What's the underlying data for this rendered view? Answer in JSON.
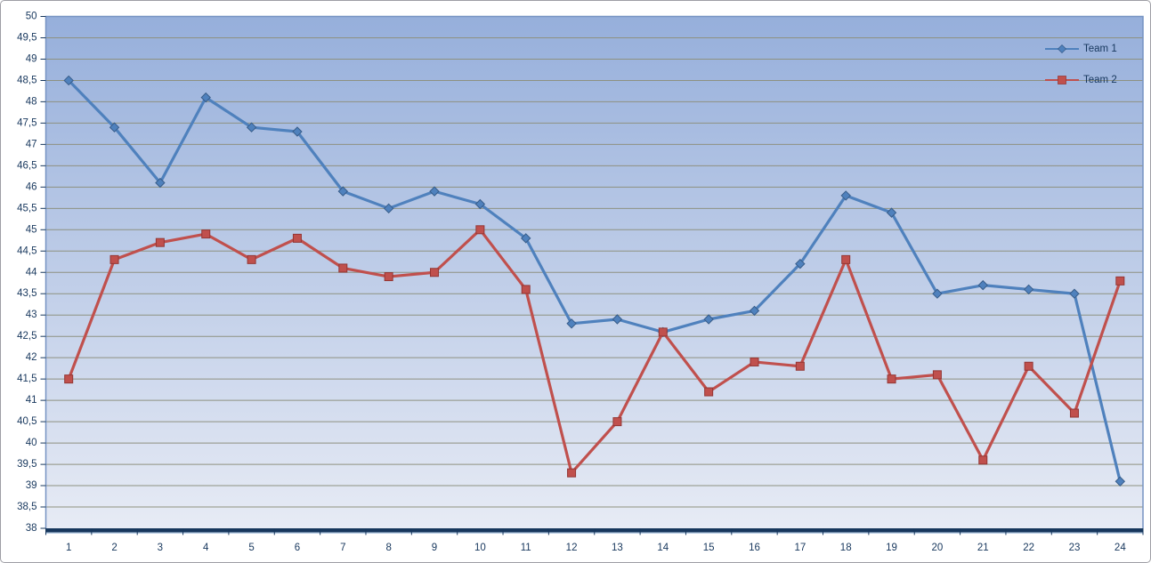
{
  "chart_data": {
    "type": "line",
    "categories": [
      "1",
      "2",
      "3",
      "4",
      "5",
      "6",
      "7",
      "8",
      "9",
      "10",
      "11",
      "12",
      "13",
      "14",
      "15",
      "16",
      "17",
      "18",
      "19",
      "20",
      "21",
      "22",
      "23",
      "24"
    ],
    "series": [
      {
        "name": "Team 1",
        "color": "#4f81bd",
        "marker": "diamond",
        "marker_border": "#385d8a",
        "values": [
          48.5,
          47.4,
          46.1,
          48.1,
          47.4,
          47.3,
          45.9,
          45.5,
          45.9,
          45.6,
          44.8,
          42.8,
          42.9,
          42.6,
          42.9,
          43.1,
          44.2,
          45.8,
          45.4,
          43.5,
          43.7,
          43.6,
          43.5,
          39.1
        ]
      },
      {
        "name": "Team 2",
        "color": "#c0504d",
        "marker": "square",
        "marker_border": "#943634",
        "values": [
          41.5,
          44.3,
          44.7,
          44.9,
          44.3,
          44.8,
          44.1,
          43.9,
          44.0,
          45.0,
          43.6,
          39.3,
          40.5,
          42.6,
          41.2,
          41.9,
          41.8,
          44.3,
          41.5,
          41.6,
          39.6,
          41.8,
          40.7,
          43.8
        ]
      }
    ],
    "xlabel": "",
    "ylabel": "",
    "ylim": [
      38,
      50
    ],
    "ytick_step": 0.5,
    "decimal_separator": ",",
    "y_tick_labels": [
      "50",
      "49,5",
      "49",
      "48,5",
      "48",
      "47,5",
      "47",
      "46,5",
      "46",
      "45,5",
      "45",
      "44,5",
      "44",
      "43,5",
      "43",
      "42,5",
      "42",
      "41,5",
      "41",
      "40,5",
      "40",
      "39,5",
      "39",
      "38,5",
      "38"
    ],
    "grid": true,
    "legend_position": "top-right",
    "style": {
      "plot_bg_top": "#96afdb",
      "plot_bg_bottom": "#e7ebf5",
      "plot_border": "#7693c2",
      "gridline": "#8e9181",
      "axis_band": "#17375d",
      "axis_band_shadow": "#b8cce4",
      "axis_text": "#17375d",
      "window_border": "#9e9ea4"
    }
  }
}
